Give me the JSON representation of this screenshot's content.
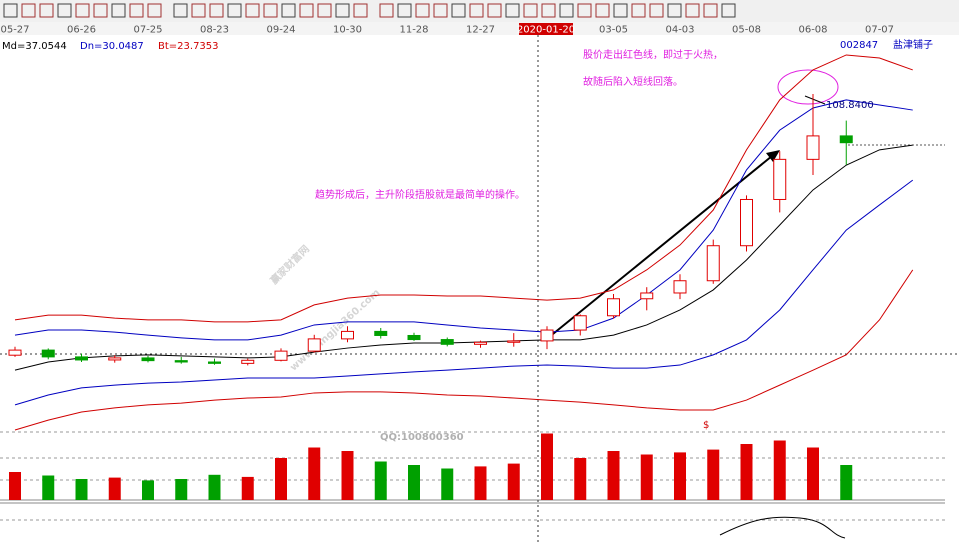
{
  "chart_data": {
    "type": "candlestick",
    "categories": [
      "05-27",
      null,
      "06-26",
      null,
      "07-25",
      null,
      "08-23",
      null,
      "09-24",
      null,
      "10-30",
      null,
      "11-28",
      null,
      "12-27",
      null,
      "2020-01-20",
      null,
      "03-05",
      null,
      "04-03",
      null,
      "05-08",
      null,
      "06-08",
      null,
      "07-07",
      null
    ],
    "crosshair_index": 16,
    "ylim": [
      10,
      130
    ],
    "open": [
      32,
      33.5,
      31.5,
      30.6,
      31.2,
      30.4,
      30,
      29.6,
      30.5,
      33.2,
      36.8,
      39,
      37.8,
      36.6,
      35.2,
      35.8,
      36.2,
      39.4,
      43.6,
      48.6,
      50.3,
      53.9,
      64.2,
      77.8,
      89.6,
      96.5,
      null,
      null
    ],
    "high": [
      34.5,
      34,
      32.5,
      32,
      31.8,
      31.5,
      31,
      31,
      34,
      38,
      40.5,
      40,
      38.6,
      37.2,
      36.3,
      38.5,
      40.5,
      44,
      50,
      52,
      55.8,
      66,
      79,
      92,
      108.84,
      101,
      null,
      null
    ],
    "low": [
      31.5,
      30.8,
      30,
      29.8,
      29.9,
      29.5,
      29.2,
      29,
      30.2,
      32.8,
      35.8,
      36.9,
      36.2,
      34.6,
      34.2,
      34.5,
      33.8,
      37.8,
      42.8,
      45.2,
      48.5,
      53,
      62.5,
      74,
      85,
      88,
      null,
      null
    ],
    "close": [
      33.5,
      31.5,
      30.6,
      31.2,
      30.4,
      30,
      29.6,
      30.5,
      33.2,
      36.8,
      39,
      37.8,
      36.6,
      35.2,
      35.8,
      36.2,
      39.4,
      43.6,
      48.6,
      50.3,
      53.9,
      64.2,
      77.8,
      89.6,
      96.5,
      94.5,
      null,
      null
    ],
    "up_color": "#e00000",
    "down_color": "#00a000",
    "volume": [
      40,
      35,
      30,
      32,
      28,
      30,
      36,
      33,
      60,
      75,
      70,
      55,
      50,
      45,
      48,
      52,
      95,
      60,
      70,
      65,
      68,
      72,
      80,
      85,
      75,
      50,
      null,
      null
    ],
    "vlim": [
      0,
      100
    ],
    "lines": [
      {
        "color": "#d00000",
        "values": [
          42.4,
          43.8,
          43.8,
          42.9,
          42.4,
          42.4,
          41.8,
          41.8,
          42.4,
          46.8,
          48.8,
          49.7,
          49.7,
          49.4,
          49.4,
          48.8,
          48.2,
          48.8,
          51.2,
          57.1,
          64.4,
          74.7,
          92.4,
          107.1,
          115.9,
          120.3,
          119.4,
          115.9
        ]
      },
      {
        "color": "#0000c0",
        "values": [
          37.9,
          39.4,
          39.4,
          38.8,
          37.9,
          37.1,
          36.5,
          36.5,
          37.9,
          40.9,
          41.8,
          41.8,
          41.8,
          40.9,
          40,
          39.4,
          38.8,
          39.4,
          42.9,
          49.7,
          57.1,
          68.8,
          86.5,
          98.2,
          104.7,
          107.1,
          105.6,
          104.1
        ]
      },
      {
        "color": "#000000",
        "values": [
          27.6,
          30,
          31.2,
          31.8,
          32.1,
          31.8,
          31.5,
          31.2,
          31.5,
          32.9,
          34.1,
          35,
          35.6,
          35.6,
          35.9,
          36.2,
          36.5,
          36.5,
          37.9,
          40.9,
          45.3,
          51.2,
          60,
          70.3,
          80.6,
          87.9,
          92.4,
          93.8
        ]
      },
      {
        "color": "#0000c0",
        "values": [
          17.4,
          20.3,
          22.4,
          23.2,
          23.8,
          24.1,
          24.7,
          25.3,
          25.3,
          25.3,
          25.9,
          26.5,
          27.1,
          27.6,
          28.2,
          28.8,
          29.1,
          28.8,
          28.2,
          28.2,
          29.1,
          32.1,
          36.5,
          45.3,
          57.1,
          68.8,
          76.2,
          83.5
        ]
      },
      {
        "color": "#d00000",
        "values": [
          10,
          12.9,
          15.3,
          16.5,
          17.4,
          17.9,
          18.8,
          19.4,
          19.7,
          20.9,
          21.2,
          21.2,
          20.9,
          20.3,
          20,
          19.4,
          18.8,
          18.2,
          17.4,
          16.5,
          15.9,
          15.9,
          18.8,
          23.2,
          27.6,
          32.1,
          42.4,
          57.1
        ]
      }
    ],
    "indicators": [
      {
        "text": "Md=37.0544",
        "color": "#000000"
      },
      {
        "text": "Dn=30.0487",
        "color": "#0000c0"
      },
      {
        "text": "Bt=23.7353",
        "color": "#d00000"
      }
    ],
    "stock_code": "002847",
    "stock_name": "盐津铺子",
    "annotations": [
      {
        "text": "股价走出红色线，即过于火热，",
        "color": "#e020e0"
      },
      {
        "text": "故随后陷入短线回落。",
        "color": "#e020e0"
      },
      {
        "text": "趋势形成后，主升阶段捂股就是最简单的操作。",
        "color": "#e020e0"
      },
      {
        "text": "108.8400",
        "color": "#000080"
      },
      {
        "text": "$",
        "color": "#d00000"
      },
      {
        "text": "QQ:100800360",
        "color": "#b0b0b0"
      }
    ],
    "watermark": [
      "赢家财富网",
      "www.yingjia360.com"
    ]
  }
}
